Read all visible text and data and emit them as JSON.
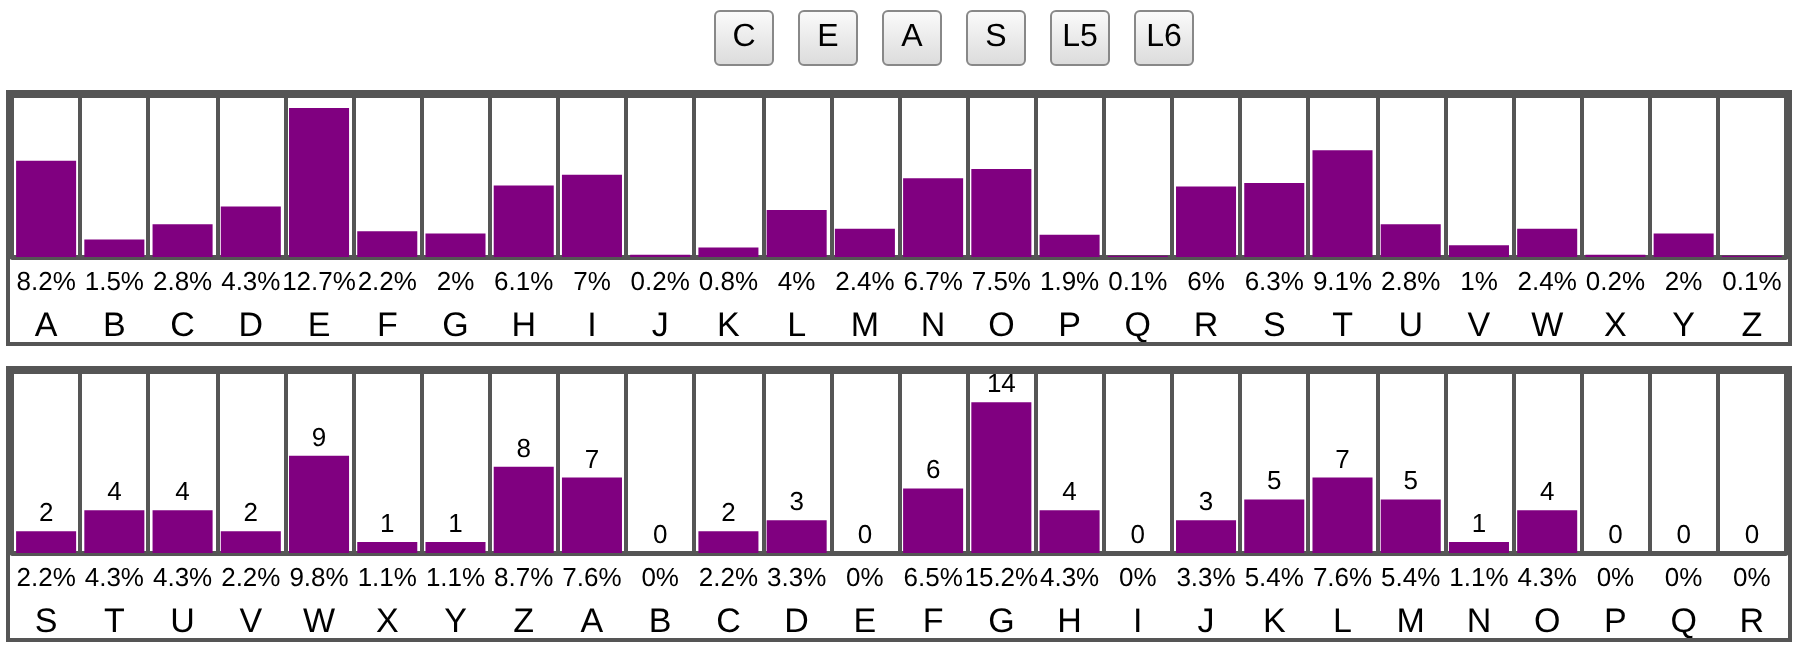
{
  "chart_data": [
    {
      "type": "other",
      "annotations": [
        "C",
        "E",
        "A",
        "S",
        "L5",
        "L6"
      ]
    },
    {
      "type": "bar",
      "categories": [
        "A",
        "B",
        "C",
        "D",
        "E",
        "F",
        "G",
        "H",
        "I",
        "J",
        "K",
        "L",
        "M",
        "N",
        "O",
        "P",
        "Q",
        "R",
        "S",
        "T",
        "U",
        "V",
        "W",
        "X",
        "Y",
        "Z"
      ],
      "color": "#800080",
      "grid": "x",
      "values": [
        8.2,
        1.5,
        2.8,
        4.3,
        12.7,
        2.2,
        2,
        6.1,
        7,
        0.2,
        0.8,
        4,
        2.4,
        6.7,
        7.5,
        1.9,
        0.1,
        6,
        6.3,
        9.1,
        2.8,
        1,
        2.4,
        0.2,
        2,
        0.1
      ],
      "value_labels": [
        "8.2%",
        "1.5%",
        "2.8%",
        "4.3%",
        "12.7%",
        "2.2%",
        "2%",
        "6.1%",
        "7%",
        "0.2%",
        "0.8%",
        "4%",
        "2.4%",
        "6.7%",
        "7.5%",
        "1.9%",
        "0.1%",
        "6%",
        "6.3%",
        "9.1%",
        "2.8%",
        "1%",
        "2.4%",
        "0.2%",
        "2%",
        "0.1%"
      ]
    },
    {
      "type": "bar",
      "categories": [
        "S",
        "T",
        "U",
        "V",
        "W",
        "X",
        "Y",
        "Z",
        "A",
        "B",
        "C",
        "D",
        "E",
        "F",
        "G",
        "H",
        "I",
        "J",
        "K",
        "L",
        "M",
        "N",
        "O",
        "P",
        "Q",
        "R"
      ],
      "color": "#800080",
      "grid": "x",
      "values": [
        2.2,
        4.3,
        4.3,
        2.2,
        9.8,
        1.1,
        1.1,
        8.7,
        7.6,
        0,
        2.2,
        3.3,
        0,
        6.5,
        15.2,
        4.3,
        0,
        3.3,
        5.4,
        7.6,
        5.4,
        1.1,
        4.3,
        0,
        0,
        0
      ],
      "value_labels": [
        "2.2%",
        "4.3%",
        "4.3%",
        "2.2%",
        "9.8%",
        "1.1%",
        "1.1%",
        "8.7%",
        "7.6%",
        "0%",
        "2.2%",
        "3.3%",
        "0%",
        "6.5%",
        "15.2%",
        "4.3%",
        "0%",
        "3.3%",
        "5.4%",
        "7.6%",
        "5.4%",
        "1.1%",
        "4.3%",
        "0%",
        "0%",
        "0%"
      ],
      "annotations": [
        {
          "text": "2",
          "x": "S",
          "y": 2.2
        },
        {
          "text": "4",
          "x": "T",
          "y": 4.3
        },
        {
          "text": "4",
          "x": "U",
          "y": 4.3
        },
        {
          "text": "2",
          "x": "V",
          "y": 2.2
        },
        {
          "text": "9",
          "x": "W",
          "y": 9.8
        },
        {
          "text": "1",
          "x": "X",
          "y": 1.1
        },
        {
          "text": "1",
          "x": "Y",
          "y": 1.1
        },
        {
          "text": "8",
          "x": "Z",
          "y": 8.7
        },
        {
          "text": "7",
          "x": "A",
          "y": 7.6
        },
        {
          "text": "0",
          "x": "B",
          "y": 0
        },
        {
          "text": "2",
          "x": "C",
          "y": 2.2
        },
        {
          "text": "3",
          "x": "D",
          "y": 3.3
        },
        {
          "text": "0",
          "x": "E",
          "y": 0
        },
        {
          "text": "6",
          "x": "F",
          "y": 6.5
        },
        {
          "text": "14",
          "x": "G",
          "y": 15.2
        },
        {
          "text": "4",
          "x": "H",
          "y": 4.3
        },
        {
          "text": "0",
          "x": "I",
          "y": 0
        },
        {
          "text": "3",
          "x": "J",
          "y": 3.3
        },
        {
          "text": "5",
          "x": "K",
          "y": 5.4
        },
        {
          "text": "7",
          "x": "L",
          "y": 7.6
        },
        {
          "text": "5",
          "x": "M",
          "y": 5.4
        },
        {
          "text": "1",
          "x": "N",
          "y": 1.1
        },
        {
          "text": "4",
          "x": "O",
          "y": 4.3
        },
        {
          "text": "0",
          "x": "P",
          "y": 0
        },
        {
          "text": "0",
          "x": "Q",
          "y": 0
        },
        {
          "text": "0",
          "x": "R",
          "y": 0
        }
      ]
    }
  ]
}
